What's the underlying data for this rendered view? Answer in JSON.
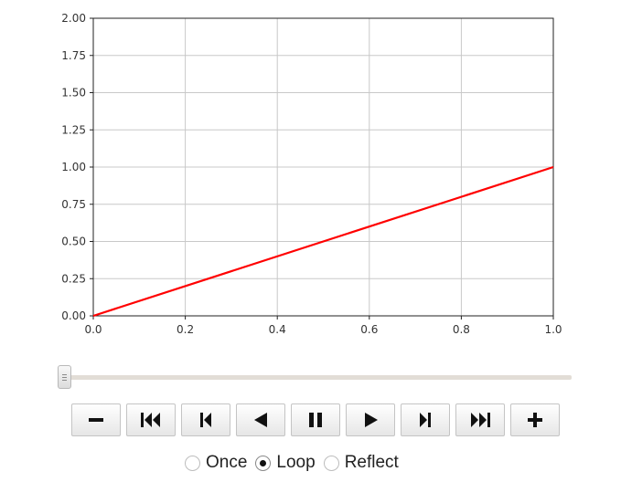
{
  "chart_data": {
    "type": "line",
    "title": "",
    "xlabel": "",
    "ylabel": "",
    "xlim": [
      0.0,
      1.0
    ],
    "ylim": [
      0.0,
      2.0
    ],
    "x_ticks": [
      "0.0",
      "0.2",
      "0.4",
      "0.6",
      "0.8",
      "1.0"
    ],
    "y_ticks": [
      "0.00",
      "0.25",
      "0.50",
      "0.75",
      "1.00",
      "1.25",
      "1.50",
      "1.75",
      "2.00"
    ],
    "grid": true,
    "series": [
      {
        "color": "#ff0000",
        "x": [
          0.0,
          1.0
        ],
        "y": [
          0.0,
          1.0
        ]
      }
    ]
  },
  "slider": {
    "value": 0.0
  },
  "controls": {
    "buttons": [
      {
        "name": "decrease-speed-button",
        "icon": "minus-icon"
      },
      {
        "name": "first-frame-button",
        "icon": "skip-to-first-icon"
      },
      {
        "name": "previous-frame-button",
        "icon": "step-back-icon"
      },
      {
        "name": "play-reverse-button",
        "icon": "play-reverse-icon"
      },
      {
        "name": "pause-button",
        "icon": "pause-icon"
      },
      {
        "name": "play-forward-button",
        "icon": "play-icon"
      },
      {
        "name": "next-frame-button",
        "icon": "step-forward-icon"
      },
      {
        "name": "last-frame-button",
        "icon": "skip-to-last-icon"
      },
      {
        "name": "increase-speed-button",
        "icon": "plus-icon"
      }
    ]
  },
  "mode": {
    "selected": "loop",
    "options": [
      {
        "id": "once",
        "label": "Once"
      },
      {
        "id": "loop",
        "label": "Loop"
      },
      {
        "id": "reflect",
        "label": "Reflect"
      }
    ]
  }
}
